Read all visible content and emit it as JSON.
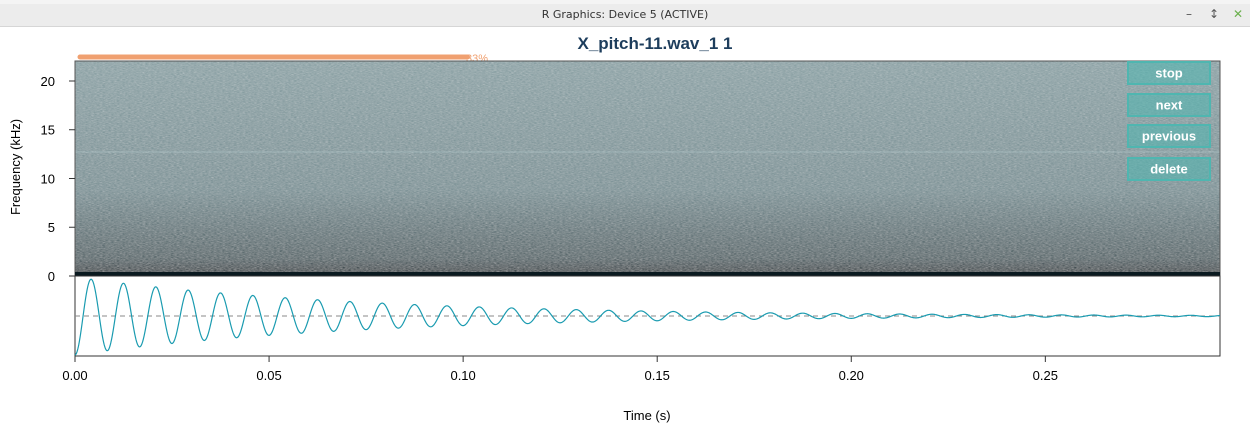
{
  "window": {
    "title": "R Graphics: Device 5 (ACTIVE)",
    "minimize_label": "–",
    "restore_label": "↕",
    "close_label": "✕"
  },
  "progress": {
    "label": "33%",
    "fraction": 0.33,
    "color": "#f0a070"
  },
  "buttons": [
    {
      "label": "stop"
    },
    {
      "label": "next"
    },
    {
      "label": "previous"
    },
    {
      "label": "delete"
    }
  ],
  "colors": {
    "title": "#1d3d5c",
    "waveform": "#1a9bb0",
    "button_fill": "#4fb6b0",
    "button_text": "#ffffff"
  },
  "chart_data": [
    {
      "type": "heatmap",
      "title": "X_pitch-11.wav_1 1",
      "xlabel": "Time (s)",
      "ylabel": "Frequency (kHz)",
      "xlim": [
        0,
        0.295
      ],
      "ylim": [
        0,
        22.05
      ],
      "yticks": [
        0,
        5,
        10,
        15,
        20
      ],
      "xticks": [
        0.0,
        0.05,
        0.1,
        0.15,
        0.2,
        0.25
      ],
      "xtick_labels": [
        "0.00",
        "0.05",
        "0.10",
        "0.15",
        "0.20",
        "0.25"
      ],
      "colormap": [
        "#0c1e25",
        "#9bb4b8"
      ]
    },
    {
      "type": "line",
      "series": [
        {
          "kind": "damped-sine",
          "frequency_hz": 120,
          "amplitude": 1.0,
          "decay_rate_per_s": 14,
          "t_start": 0.0,
          "t_end": 0.295
        }
      ],
      "xlim": [
        0,
        0.295
      ],
      "baseline": 0
    }
  ]
}
